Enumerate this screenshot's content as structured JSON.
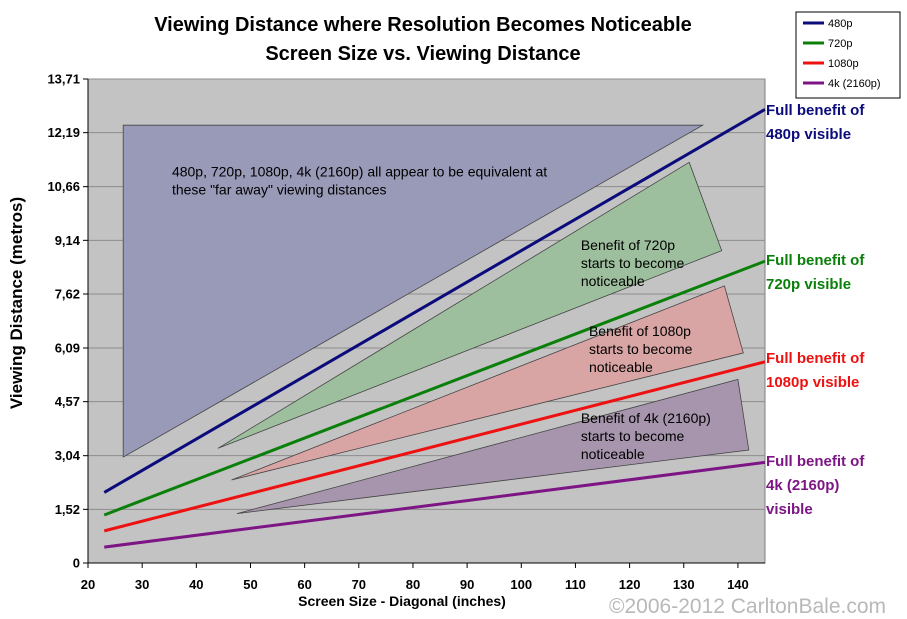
{
  "chart_data": {
    "type": "line",
    "title": "Viewing Distance where Resolution Becomes Noticeable",
    "subtitle": "Screen Size vs. Viewing Distance",
    "xlabel": "Screen Size - Diagonal (inches)",
    "ylabel": "Viewing Distance (metros)",
    "xlim": [
      20,
      145
    ],
    "ylim": [
      0,
      13.71
    ],
    "x_ticks": [
      20,
      30,
      40,
      50,
      60,
      70,
      80,
      90,
      100,
      110,
      120,
      130,
      140
    ],
    "y_ticks": [
      0,
      1.52,
      3.04,
      4.57,
      6.09,
      7.62,
      9.14,
      10.66,
      12.19,
      13.71
    ],
    "y_tick_labels": [
      "0",
      "1,52",
      "3,04",
      "4,57",
      "6,09",
      "7,62",
      "9,14",
      "10,66",
      "12,19",
      "13,71"
    ],
    "series": [
      {
        "name": "480p",
        "color": "#0b0b7c",
        "x": [
          23,
          145
        ],
        "y": [
          2.0,
          12.85
        ],
        "end_label": [
          "Full benefit of",
          "480p visible"
        ]
      },
      {
        "name": "720p",
        "color": "#0a800a",
        "x": [
          23,
          145
        ],
        "y": [
          1.36,
          8.55
        ],
        "end_label": [
          "Full benefit of",
          "720p visible"
        ]
      },
      {
        "name": "1080p",
        "color": "#ee1111",
        "x": [
          23,
          145
        ],
        "y": [
          0.91,
          5.7
        ],
        "end_label": [
          "Full benefit of",
          "1080p visible"
        ]
      },
      {
        "name": "4k (2160p)",
        "color": "#7d1585",
        "x": [
          23,
          145
        ],
        "y": [
          0.45,
          2.85
        ],
        "end_label": [
          "Full benefit of",
          "4k (2160p)",
          "visible"
        ]
      }
    ],
    "regions": [
      {
        "name": "far-away",
        "fill": "#9999b8",
        "points": [
          [
            26.5,
            12.4
          ],
          [
            133.5,
            12.4
          ],
          [
            26.5,
            3.0
          ]
        ],
        "label": [
          "480p, 720p, 1080p, 4k (2160p) all appear to be equivalent at",
          "these \"far away\" viewing distances"
        ]
      },
      {
        "name": "720p-benefit",
        "fill": "#9ebf9e",
        "points": [
          [
            131,
            11.35
          ],
          [
            137,
            8.85
          ],
          [
            44,
            3.25
          ]
        ],
        "label": [
          "Benefit of 720p",
          "starts to become",
          "noticeable"
        ]
      },
      {
        "name": "1080p-benefit",
        "fill": "#d9a4a4",
        "points": [
          [
            137.5,
            7.85
          ],
          [
            141,
            5.95
          ],
          [
            46.5,
            2.35
          ]
        ],
        "label": [
          "Benefit of 1080p",
          "starts to become",
          "noticeable"
        ]
      },
      {
        "name": "4k-benefit",
        "fill": "#a695ad",
        "points": [
          [
            140,
            5.2
          ],
          [
            142,
            3.2
          ],
          [
            47.5,
            1.4
          ]
        ],
        "label": [
          "Benefit of 4k (2160p)",
          "starts to become",
          "noticeable"
        ]
      }
    ],
    "legend_position": "top-right"
  },
  "copyright": "©2006-2012 CarltonBale.com"
}
